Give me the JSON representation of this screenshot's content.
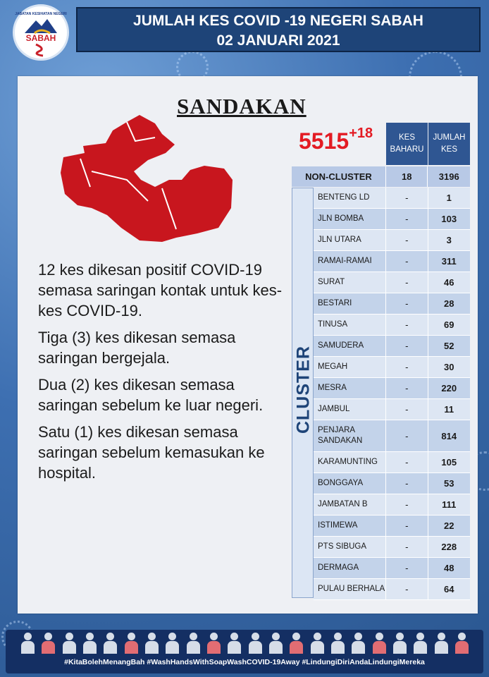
{
  "logo": {
    "tagline": "JABATAN KESIHATAN NEGERI",
    "word": "SABAH"
  },
  "header": {
    "line1": "JUMLAH KES COVID -19 NEGERI SABAH",
    "line2": "02 JANUARI 2021"
  },
  "district": "SANDAKAN",
  "total": {
    "cases": "5515",
    "new": "+18"
  },
  "columns": {
    "new_cases": "KES BAHARU",
    "total_cases": "JUMLAH KES"
  },
  "non_cluster": {
    "label": "NON-CLUSTER",
    "new": "18",
    "total": "3196"
  },
  "cluster_label": "CLUSTER",
  "clusters": [
    {
      "name": "BENTENG LD",
      "new": "-",
      "total": "1"
    },
    {
      "name": "JLN BOMBA",
      "new": "-",
      "total": "103"
    },
    {
      "name": "JLN UTARA",
      "new": "-",
      "total": "3"
    },
    {
      "name": "RAMAI-RAMAI",
      "new": "-",
      "total": "311"
    },
    {
      "name": "SURAT",
      "new": "-",
      "total": "46"
    },
    {
      "name": "BESTARI",
      "new": "-",
      "total": "28"
    },
    {
      "name": "TINUSA",
      "new": "-",
      "total": "69"
    },
    {
      "name": "SAMUDERA",
      "new": "-",
      "total": "52"
    },
    {
      "name": "MEGAH",
      "new": "-",
      "total": "30"
    },
    {
      "name": "MESRA",
      "new": "-",
      "total": "220"
    },
    {
      "name": "JAMBUL",
      "new": "-",
      "total": "11"
    },
    {
      "name": "PENJARA SANDAKAN",
      "new": "-",
      "total": "814"
    },
    {
      "name": "KARAMUNTING",
      "new": "-",
      "total": "105"
    },
    {
      "name": "BONGGAYA",
      "new": "-",
      "total": "53"
    },
    {
      "name": "JAMBATAN B",
      "new": "-",
      "total": "111"
    },
    {
      "name": "ISTIMEWA",
      "new": "-",
      "total": "22"
    },
    {
      "name": "PTS SIBUGA",
      "new": "-",
      "total": "228"
    },
    {
      "name": "DERMAGA",
      "new": "-",
      "total": "48"
    },
    {
      "name": "PULAU BERHALA",
      "new": "-",
      "total": "64"
    }
  ],
  "paragraphs": [
    "12 kes dikesan positif COVID-19 semasa saringan kontak untuk kes-kes COVID-19.",
    "Tiga (3) kes dikesan semasa saringan bergejala.",
    "Dua (2) kes dikesan semasa saringan sebelum ke luar negeri.",
    "Satu (1) kes dikesan semasa saringan sebelum kemasukan ke hospital."
  ],
  "footer": {
    "hashtags": "#KitaBolehMenangBah #WashHandsWithSoapWashCOVID-19Away #LindungiDiriAndaLindungiMereka"
  },
  "colors": {
    "map_red": "#c8161e",
    "total_red": "#e31b23",
    "navy": "#1e4478"
  }
}
